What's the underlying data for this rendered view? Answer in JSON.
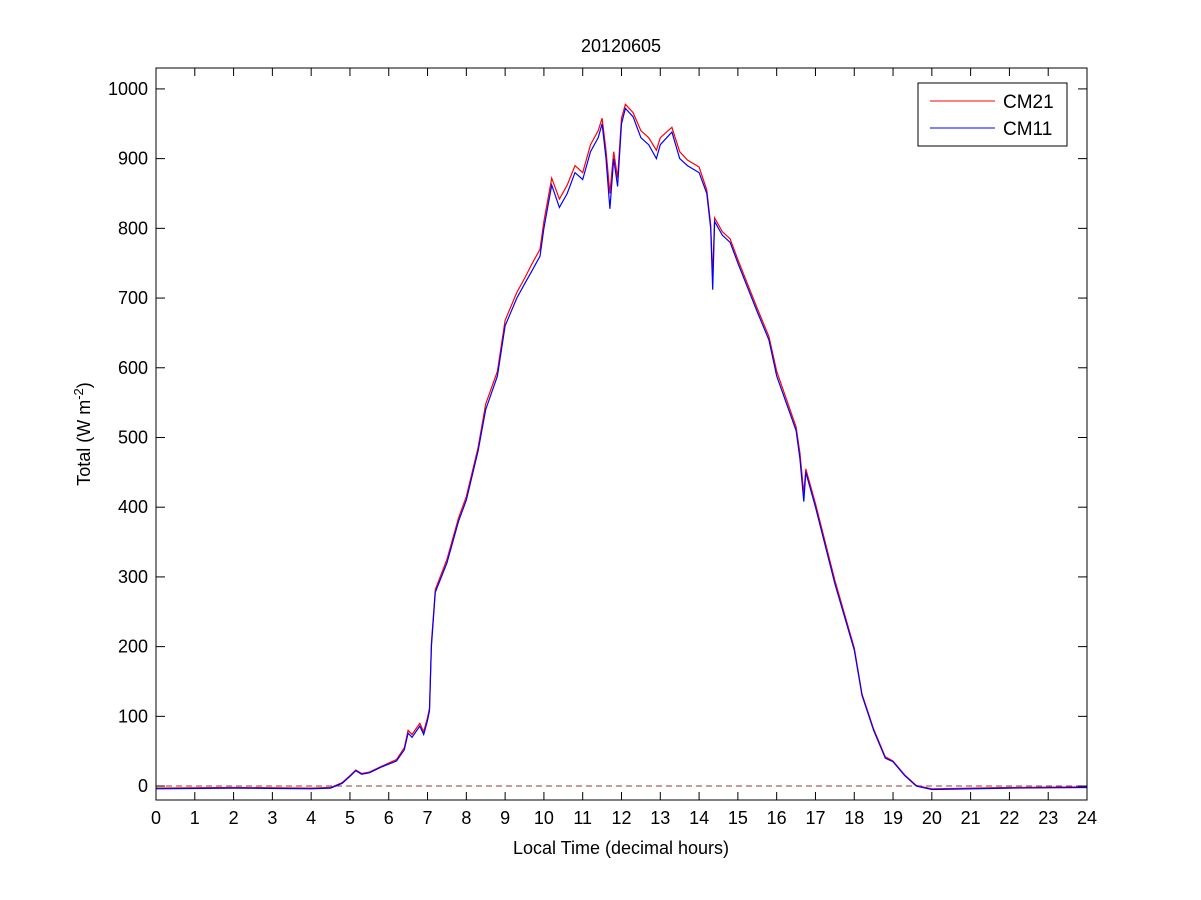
{
  "chart_data": {
    "type": "line",
    "title": "20120605",
    "xlabel": "Local Time (decimal hours)",
    "ylabel": "Total (W m",
    "ylabel_sup": "-2",
    "ylabel_end": ")",
    "xlim": [
      0,
      24
    ],
    "ylim": [
      -20,
      1030
    ],
    "xticks": [
      0,
      1,
      2,
      3,
      4,
      5,
      6,
      7,
      8,
      9,
      10,
      11,
      12,
      13,
      14,
      15,
      16,
      17,
      18,
      19,
      20,
      21,
      22,
      23,
      24
    ],
    "yticks": [
      0,
      100,
      200,
      300,
      400,
      500,
      600,
      700,
      800,
      900,
      1000
    ],
    "legend_position": "top-right",
    "reference_line": {
      "y": 0,
      "style": "dashed",
      "color": "#8b3a3a"
    },
    "x": [
      0,
      2,
      4,
      4.5,
      4.8,
      5.0,
      5.15,
      5.3,
      5.5,
      5.8,
      6.2,
      6.4,
      6.5,
      6.6,
      6.8,
      6.9,
      7.0,
      7.05,
      7.1,
      7.2,
      7.5,
      7.8,
      8.0,
      8.3,
      8.5,
      8.8,
      9.0,
      9.3,
      9.5,
      9.7,
      9.9,
      10.0,
      10.2,
      10.4,
      10.6,
      10.8,
      11.0,
      11.2,
      11.4,
      11.5,
      11.6,
      11.7,
      11.8,
      11.9,
      12.0,
      12.1,
      12.3,
      12.5,
      12.7,
      12.9,
      13.0,
      13.3,
      13.5,
      13.7,
      14.0,
      14.2,
      14.3,
      14.35,
      14.4,
      14.6,
      14.8,
      15.0,
      15.5,
      15.8,
      16.0,
      16.5,
      16.6,
      16.7,
      16.75,
      17.0,
      17.5,
      18.0,
      18.2,
      18.5,
      18.8,
      19.0,
      19.3,
      19.6,
      20,
      22,
      24
    ],
    "series": [
      {
        "name": "CM21",
        "color": "#ff0000",
        "values": [
          -3,
          -2,
          -3,
          -2,
          5,
          15,
          23,
          18,
          20,
          28,
          38,
          55,
          80,
          74,
          90,
          78,
          98,
          112,
          205,
          282,
          325,
          385,
          415,
          485,
          548,
          595,
          668,
          708,
          728,
          750,
          770,
          810,
          872,
          842,
          862,
          890,
          880,
          920,
          940,
          958,
          912,
          850,
          910,
          872,
          958,
          978,
          966,
          940,
          930,
          912,
          930,
          945,
          910,
          898,
          888,
          855,
          805,
          730,
          815,
          795,
          785,
          755,
          685,
          645,
          595,
          515,
          478,
          420,
          455,
          405,
          295,
          198,
          132,
          82,
          42,
          36,
          16,
          1,
          -4,
          -2,
          -1
        ]
      },
      {
        "name": "CM11",
        "color": "#0000ff",
        "values": [
          -4,
          -3,
          -4,
          -3,
          4,
          14,
          22,
          17,
          19,
          27,
          36,
          52,
          76,
          70,
          86,
          74,
          94,
          108,
          200,
          278,
          320,
          380,
          410,
          480,
          540,
          588,
          660,
          700,
          720,
          740,
          760,
          800,
          862,
          830,
          850,
          880,
          870,
          910,
          930,
          950,
          900,
          828,
          900,
          860,
          950,
          972,
          960,
          930,
          920,
          900,
          920,
          938,
          900,
          890,
          880,
          850,
          800,
          712,
          810,
          790,
          780,
          750,
          680,
          640,
          588,
          510,
          470,
          408,
          450,
          400,
          290,
          195,
          130,
          80,
          40,
          35,
          15,
          0,
          -5,
          -3,
          -2
        ]
      }
    ]
  }
}
